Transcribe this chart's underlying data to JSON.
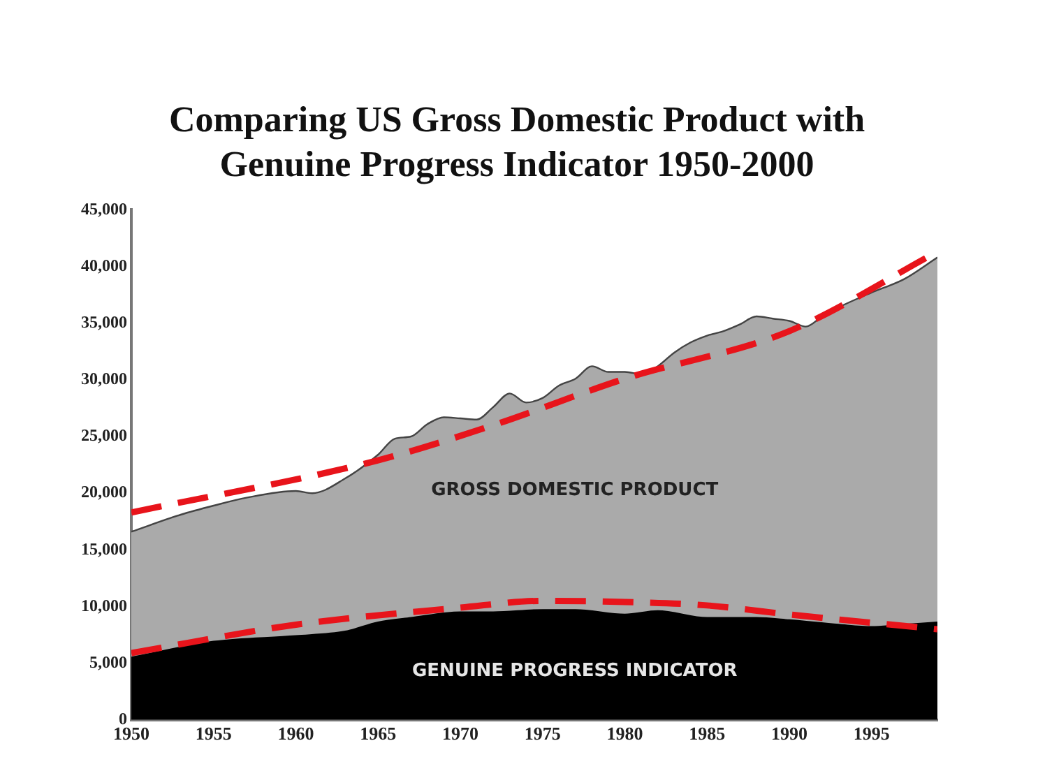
{
  "chart_data": {
    "type": "area",
    "title": "Comparing US Gross Domestic Product with Genuine Progress Indicator 1950-2000",
    "xlim": [
      1950,
      1999
    ],
    "xticks": [
      1950,
      1955,
      1960,
      1965,
      1970,
      1975,
      1980,
      1985,
      1990,
      1995
    ],
    "ylim": [
      0,
      45000
    ],
    "yticks": [
      {
        "value": 0,
        "label": "0"
      },
      {
        "value": 5000,
        "label": "5,000"
      },
      {
        "value": 10000,
        "label": "10,000"
      },
      {
        "value": 15000,
        "label": "15,000"
      },
      {
        "value": 20000,
        "label": "20,000"
      },
      {
        "value": 25000,
        "label": "25,000"
      },
      {
        "value": 30000,
        "label": "30,000"
      },
      {
        "value": 35000,
        "label": "35,000"
      },
      {
        "value": 40000,
        "label": "40,000"
      },
      {
        "value": 45000,
        "label": "45,000"
      }
    ],
    "grid": false,
    "legend": false,
    "series": [
      {
        "name": "GROSS DOMESTIC PRODUCT",
        "color": "#aaaaaa",
        "x": [
          1950,
          1953,
          1955,
          1957,
          1960,
          1961,
          1963,
          1965,
          1966,
          1967,
          1968,
          1969,
          1970,
          1971,
          1972,
          1973,
          1974,
          1975,
          1976,
          1977,
          1978,
          1979,
          1980,
          1981,
          1982,
          1983,
          1984,
          1985,
          1986,
          1987,
          1988,
          1989,
          1990,
          1991,
          1992,
          1993,
          1995,
          1997,
          1999
        ],
        "values": [
          16600,
          18100,
          18900,
          19600,
          20200,
          20000,
          21300,
          23400,
          24800,
          25000,
          26100,
          26700,
          26600,
          26500,
          27600,
          28800,
          28000,
          28400,
          29500,
          30100,
          31200,
          30700,
          30700,
          30500,
          31200,
          32400,
          33300,
          33900,
          34300,
          34900,
          35600,
          35400,
          35200,
          34700,
          35600,
          36400,
          37700,
          38900,
          40800
        ]
      },
      {
        "name": "GENUINE PROGRESS INDICATOR",
        "color": "#000000",
        "x": [
          1950,
          1955,
          1960,
          1963,
          1965,
          1967,
          1970,
          1972,
          1975,
          1977,
          1980,
          1982,
          1985,
          1988,
          1990,
          1993,
          1995,
          1997,
          1999
        ],
        "values": [
          5500,
          6900,
          7400,
          7800,
          8600,
          9000,
          9500,
          9500,
          9700,
          9700,
          9300,
          9600,
          9000,
          9000,
          8800,
          8400,
          8200,
          8400,
          8600
        ]
      },
      {
        "type": "line",
        "color": "#e8141b",
        "line_style": "dashed",
        "x": [
          1950,
          1965,
          1972,
          1980,
          1990,
          1999
        ],
        "values": [
          18300,
          22900,
          26000,
          30100,
          34300,
          41300
        ]
      },
      {
        "type": "line",
        "color": "#e8141b",
        "line_style": "dashed",
        "x": [
          1950,
          1960,
          1970,
          1975,
          1980,
          1985,
          1990,
          1999
        ],
        "values": [
          5900,
          8400,
          9900,
          10500,
          10400,
          10100,
          9300,
          8000
        ]
      }
    ]
  }
}
